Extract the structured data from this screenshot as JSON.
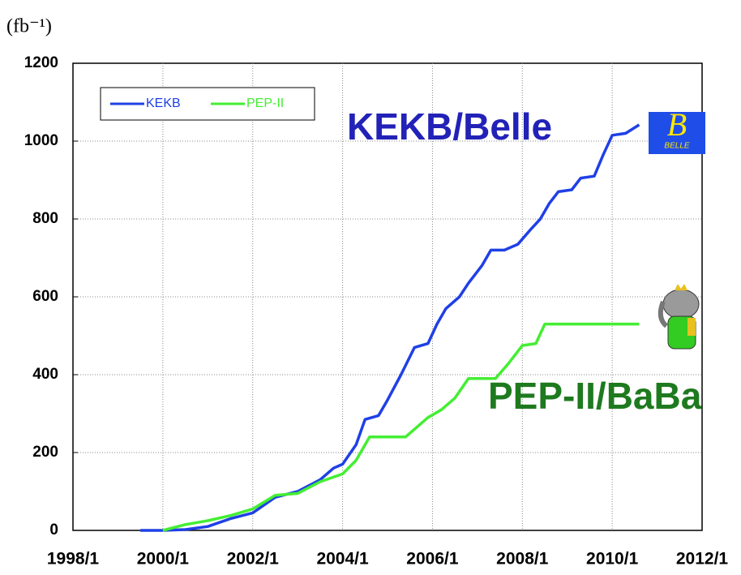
{
  "chart_data": {
    "type": "line",
    "unit_label": "(fb⁻¹)",
    "annotations": [
      "KEKB/Belle",
      "PEP-II/BaBa",
      "BELLE"
    ],
    "xlim": [
      1998,
      2012
    ],
    "xticks": [
      {
        "value": 1998,
        "label": "1998/1"
      },
      {
        "value": 2000,
        "label": "2000/1"
      },
      {
        "value": 2002,
        "label": "2002/1"
      },
      {
        "value": 2004,
        "label": "2004/1"
      },
      {
        "value": 2006,
        "label": "2006/1"
      },
      {
        "value": 2008,
        "label": "2008/1"
      },
      {
        "value": 2010,
        "label": "2010/1"
      },
      {
        "value": 2012,
        "label": "2012/1"
      }
    ],
    "ylim": [
      0,
      1200
    ],
    "yticks": [
      0,
      200,
      400,
      600,
      800,
      1000,
      1200
    ],
    "grid": true,
    "legend": "top-left",
    "series": [
      {
        "name": "KEKB",
        "color": "#1f40e6",
        "x": [
          1999.5,
          2000.0,
          2000.5,
          2001.0,
          2001.5,
          2002.0,
          2002.5,
          2003.0,
          2003.5,
          2003.8,
          2004.0,
          2004.3,
          2004.5,
          2004.8,
          2005.0,
          2005.3,
          2005.6,
          2005.9,
          2006.1,
          2006.3,
          2006.6,
          2006.8,
          2007.1,
          2007.3,
          2007.6,
          2007.9,
          2008.2,
          2008.4,
          2008.6,
          2008.8,
          2009.1,
          2009.3,
          2009.6,
          2009.8,
          2010.0,
          2010.3,
          2010.6
        ],
        "values": [
          0,
          0,
          2,
          10,
          30,
          45,
          85,
          100,
          130,
          160,
          170,
          220,
          285,
          295,
          335,
          400,
          470,
          480,
          530,
          570,
          600,
          635,
          680,
          720,
          720,
          735,
          775,
          800,
          840,
          870,
          875,
          905,
          910,
          965,
          1015,
          1020,
          1042
        ]
      },
      {
        "name": "PEP-II",
        "color": "#44ee33",
        "x": [
          2000.0,
          2000.5,
          2001.0,
          2001.5,
          2002.0,
          2002.5,
          2003.0,
          2003.5,
          2004.0,
          2004.3,
          2004.6,
          2005.4,
          2005.9,
          2006.2,
          2006.5,
          2006.8,
          2007.4,
          2007.7,
          2008.0,
          2008.3,
          2008.5,
          2010.6
        ],
        "values": [
          0,
          15,
          25,
          38,
          55,
          90,
          95,
          125,
          145,
          180,
          240,
          240,
          290,
          310,
          340,
          390,
          390,
          430,
          475,
          480,
          530,
          530
        ]
      }
    ]
  }
}
